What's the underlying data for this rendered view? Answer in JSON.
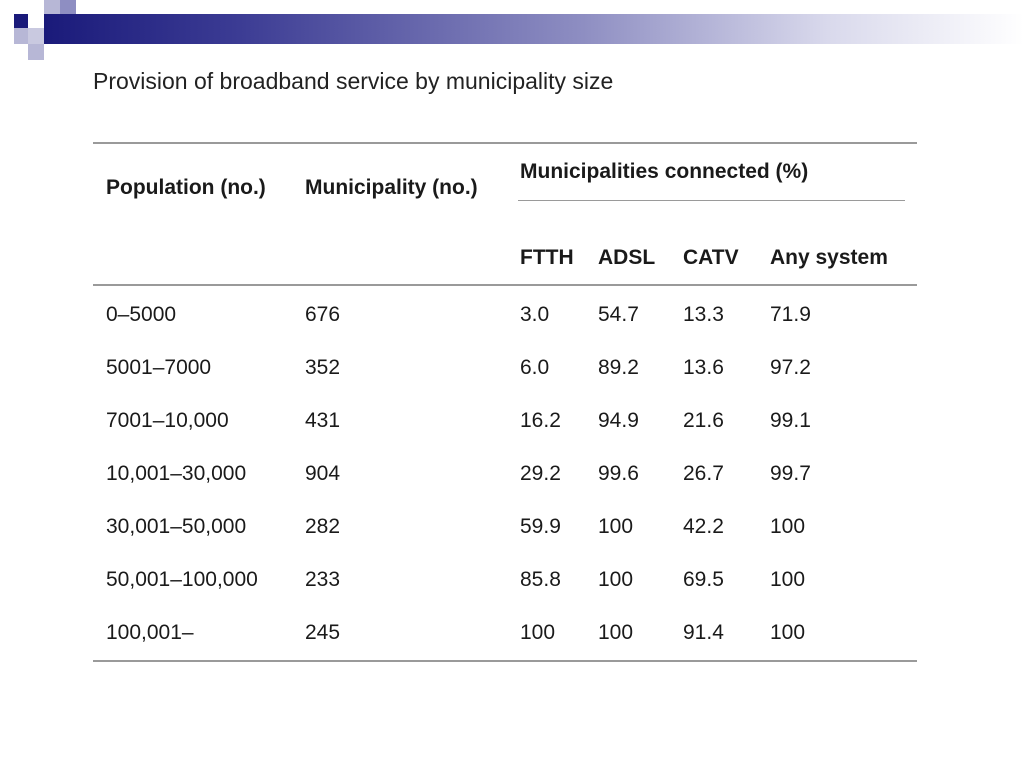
{
  "title": "Provision of broadband service by municipality size",
  "table": {
    "headers": {
      "population": "Population (no.)",
      "municipality": "Municipality (no.)",
      "group": "Municipalities connected (%)",
      "ftth": "FTTH",
      "adsl": "ADSL",
      "catv": "CATV",
      "any": "Any system"
    },
    "rows": [
      {
        "population": "0–5000",
        "municipality": "676",
        "ftth": "3.0",
        "adsl": "54.7",
        "catv": "13.3",
        "any": "71.9"
      },
      {
        "population": "5001–7000",
        "municipality": "352",
        "ftth": "6.0",
        "adsl": "89.2",
        "catv": "13.6",
        "any": "97.2"
      },
      {
        "population": "7001–10,000",
        "municipality": "431",
        "ftth": "16.2",
        "adsl": "94.9",
        "catv": "21.6",
        "any": "99.1"
      },
      {
        "population": "10,001–30,000",
        "municipality": "904",
        "ftth": "29.2",
        "adsl": "99.6",
        "catv": "26.7",
        "any": "99.7"
      },
      {
        "population": "30,001–50,000",
        "municipality": "282",
        "ftth": "59.9",
        "adsl": "100",
        "catv": "42.2",
        "any": "100"
      },
      {
        "population": "50,001–100,000",
        "municipality": "233",
        "ftth": "85.8",
        "adsl": "100",
        "catv": "69.5",
        "any": "100"
      },
      {
        "population": "100,001–",
        "municipality": "245",
        "ftth": "100",
        "adsl": "100",
        "catv": "91.4",
        "any": "100"
      }
    ]
  },
  "colors": {
    "header_band_dark": "#1a1a7a",
    "rule": "#9a9a9a",
    "text": "#1a1a1a"
  }
}
